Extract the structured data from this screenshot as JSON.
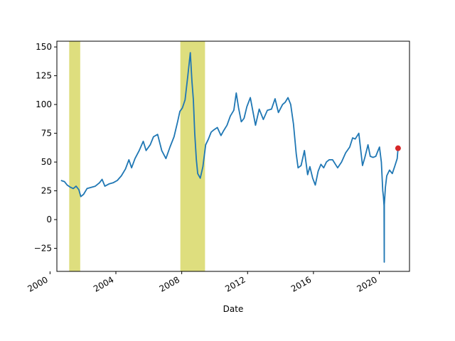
{
  "chart_data": {
    "type": "line",
    "title": "",
    "xlabel": "Date",
    "ylabel": "",
    "xlim": [
      "2000-06-01",
      "2021-11-01"
    ],
    "ylim": [
      -45,
      155
    ],
    "x_ticks": [
      "2000",
      "2004",
      "2008",
      "2012",
      "2016",
      "2020"
    ],
    "y_ticks": [
      -25,
      0,
      25,
      50,
      75,
      100,
      125,
      150
    ],
    "grid": false,
    "legend": "none",
    "shaded_regions": [
      {
        "start": "2001-03-01",
        "end": "2001-11-01",
        "color": "#dede7e"
      },
      {
        "start": "2007-12-01",
        "end": "2009-06-01",
        "color": "#dede7e"
      }
    ],
    "series": [
      {
        "color": "#1f77b4",
        "x": [
          "2000-09-01",
          "2000-11-15",
          "2001-01-15",
          "2001-04-01",
          "2001-06-01",
          "2001-08-01",
          "2001-10-01",
          "2001-11-15",
          "2002-01-15",
          "2002-04-01",
          "2002-07-01",
          "2002-10-01",
          "2003-01-01",
          "2003-03-01",
          "2003-05-01",
          "2003-08-01",
          "2003-11-01",
          "2004-02-01",
          "2004-05-01",
          "2004-08-01",
          "2004-10-15",
          "2004-12-15",
          "2005-03-01",
          "2005-06-01",
          "2005-08-30",
          "2005-11-01",
          "2006-02-01",
          "2006-04-15",
          "2006-07-15",
          "2006-10-15",
          "2007-01-15",
          "2007-04-15",
          "2007-07-15",
          "2007-10-01",
          "2007-11-20",
          "2008-01-15",
          "2008-03-15",
          "2008-05-15",
          "2008-07-10",
          "2008-08-15",
          "2008-09-15",
          "2008-10-15",
          "2008-11-20",
          "2008-12-20",
          "2009-02-15",
          "2009-04-15",
          "2009-06-15",
          "2009-08-15",
          "2009-10-15",
          "2009-12-15",
          "2010-03-01",
          "2010-05-20",
          "2010-07-15",
          "2010-10-01",
          "2010-12-15",
          "2011-03-01",
          "2011-04-25",
          "2011-06-15",
          "2011-08-15",
          "2011-10-15",
          "2011-12-15",
          "2012-03-01",
          "2012-06-25",
          "2012-09-15",
          "2012-12-15",
          "2013-03-15",
          "2013-06-15",
          "2013-09-01",
          "2013-11-15",
          "2014-02-15",
          "2014-04-15",
          "2014-06-15",
          "2014-08-15",
          "2014-10-15",
          "2014-12-15",
          "2015-01-25",
          "2015-04-01",
          "2015-06-15",
          "2015-08-25",
          "2015-10-15",
          "2015-12-15",
          "2016-02-11",
          "2016-04-15",
          "2016-06-15",
          "2016-08-15",
          "2016-10-15",
          "2016-12-15",
          "2017-03-01",
          "2017-06-20",
          "2017-09-15",
          "2017-12-15",
          "2018-03-15",
          "2018-05-20",
          "2018-07-15",
          "2018-10-03",
          "2018-12-24",
          "2019-02-15",
          "2019-04-25",
          "2019-06-15",
          "2019-08-15",
          "2019-10-15",
          "2019-12-15",
          "2020-01-06",
          "2020-02-15",
          "2020-03-18",
          "2020-04-01",
          "2020-04-15",
          "2020-04-20",
          "2020-04-22",
          "2020-05-01",
          "2020-05-15",
          "2020-06-15",
          "2020-08-15",
          "2020-10-15",
          "2020-12-15",
          "2021-02-01",
          "2021-02-20"
        ],
        "y": [
          34,
          33,
          30,
          28,
          27,
          29,
          26,
          20,
          22,
          27,
          28,
          29,
          32,
          35,
          29,
          31,
          32,
          34,
          38,
          44,
          52,
          45,
          53,
          60,
          68,
          60,
          65,
          72,
          74,
          60,
          53,
          63,
          72,
          85,
          94,
          97,
          104,
          125,
          145,
          120,
          104,
          75,
          52,
          40,
          36,
          46,
          65,
          70,
          76,
          78,
          80,
          73,
          77,
          82,
          90,
          95,
          110,
          97,
          85,
          88,
          98,
          106,
          82,
          96,
          87,
          95,
          96,
          105,
          93,
          100,
          102,
          106,
          100,
          83,
          57,
          45,
          47,
          60,
          39,
          46,
          36,
          30,
          42,
          48,
          45,
          50,
          52,
          52,
          45,
          50,
          58,
          63,
          71,
          70,
          75,
          47,
          54,
          65,
          55,
          54,
          55,
          61,
          63,
          50,
          25,
          20,
          12,
          -37,
          13,
          19,
          28,
          38,
          43,
          40,
          47,
          53,
          62
        ]
      }
    ],
    "annotations": [
      {
        "type": "point",
        "x": "2021-02-20",
        "y": 62,
        "color": "#d62728"
      }
    ]
  }
}
